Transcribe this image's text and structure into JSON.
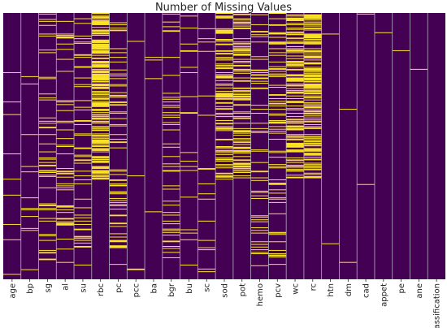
{
  "chart_data": {
    "type": "heatmap",
    "title": "Number of Missing Values",
    "xlabel": "",
    "ylabel": "",
    "columns": [
      "age",
      "bp",
      "sg",
      "al",
      "su",
      "rbc",
      "pc",
      "pcc",
      "ba",
      "bgr",
      "bu",
      "sc",
      "sod",
      "pot",
      "hemo",
      "pcv",
      "wc",
      "rc",
      "htn",
      "dm",
      "cad",
      "appet",
      "pe",
      "ane",
      "classification"
    ],
    "n_rows": 400,
    "missing_counts": [
      9,
      12,
      47,
      46,
      49,
      152,
      65,
      4,
      4,
      44,
      19,
      17,
      87,
      88,
      52,
      70,
      105,
      130,
      2,
      2,
      2,
      1,
      1,
      1,
      0
    ],
    "value_colors": {
      "present": "#440154",
      "missing": "#fde725"
    },
    "column_separator_color": "#b7b0c4",
    "row_extent": [
      0,
      400
    ],
    "cbar": false,
    "legend": "none"
  }
}
